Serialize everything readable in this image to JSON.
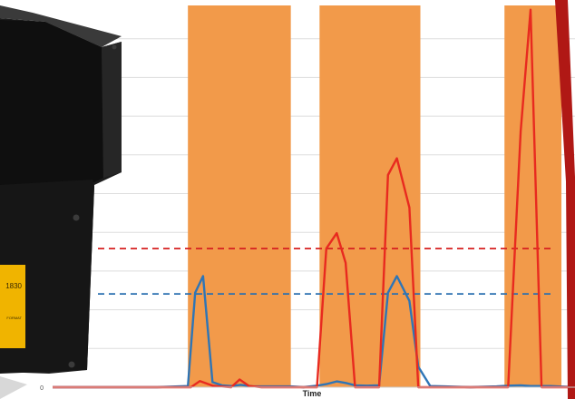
{
  "chart_data": {
    "type": "line",
    "title": "",
    "xlabel": "Time",
    "ylabel": "",
    "y_tick_labels": [
      "0"
    ],
    "grid": true,
    "ylim": [
      0,
      100
    ],
    "xlim": [
      0,
      100
    ],
    "event_bands": [
      {
        "start": 25.9,
        "end": 45.6
      },
      {
        "start": 51.1,
        "end": 70.4
      },
      {
        "start": 86.5,
        "end": 97.4
      }
    ],
    "thresholds": [
      {
        "series": "red",
        "value": 35.8
      },
      {
        "series": "blue",
        "value": 24.1
      }
    ],
    "series": [
      {
        "color": "#e82a1f",
        "x": [
          0,
          10,
          20,
          26.5,
          28.2,
          30.6,
          31.8,
          34.2,
          35.8,
          37.6,
          40,
          45.6,
          48,
          50.6,
          52.4,
          54.4,
          56.1,
          57.9,
          60.2,
          62.5,
          64.2,
          65.9,
          68.3,
          70,
          75,
          80,
          85,
          87.2,
          89.6,
          91.5,
          93.6,
          95.3,
          97.2,
          100
        ],
        "y": [
          0,
          0,
          0,
          0,
          1.6,
          0.4,
          0.2,
          0,
          2,
          0.3,
          0,
          0,
          0,
          0,
          35.8,
          39.8,
          32.1,
          0,
          0,
          0,
          54.8,
          59.1,
          46.4,
          0,
          0,
          0,
          0,
          0,
          66.1,
          97.5,
          0,
          0,
          0,
          0
        ]
      },
      {
        "color": "#2e75b6",
        "x": [
          0,
          10,
          20,
          25.9,
          27.3,
          28.8,
          30.6,
          32.4,
          34.2,
          36,
          38.3,
          45.6,
          48,
          50.6,
          52.4,
          54.4,
          56.1,
          57.9,
          60.2,
          62.5,
          64.2,
          65.9,
          68.3,
          70,
          72.3,
          75,
          80,
          85,
          87.2,
          89.6,
          91.5,
          95.3,
          100
        ],
        "y": [
          0,
          0,
          0,
          0.3,
          24.4,
          28.7,
          1.3,
          0.5,
          0.3,
          0.6,
          0.2,
          0.2,
          0,
          0.4,
          0.8,
          1.5,
          1.1,
          0.5,
          0.4,
          0.5,
          24.4,
          28.7,
          22.3,
          5.3,
          0.3,
          0.2,
          0,
          0.2,
          0.4,
          0.5,
          0.3,
          0.3,
          0
        ]
      }
    ]
  },
  "photo": {
    "label_digits": "1830",
    "label_text": "FORMAT"
  },
  "colors": {
    "band": "#f29a4a",
    "red": "#e82a1f",
    "blue": "#2e75b6",
    "red_dash": "#d62020",
    "blue_dash": "#2a70b0",
    "grid": "#dddddd",
    "frame": "#b01815",
    "device": "#141414"
  }
}
